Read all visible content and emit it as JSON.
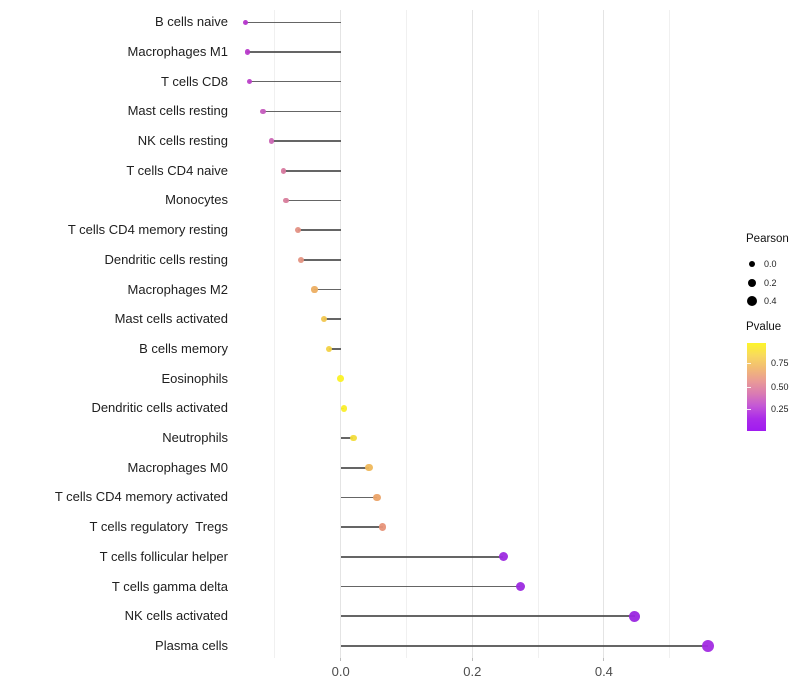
{
  "chart_data": {
    "type": "scatter",
    "style": "lollipop-horizontal",
    "title": "",
    "xlabel": "",
    "ylabel": "",
    "xlim": [
      -0.18,
      0.59
    ],
    "grid": "on",
    "x_ticks": [
      {
        "value": 0.0,
        "label": "0.0"
      },
      {
        "value": 0.2,
        "label": "0.2"
      },
      {
        "value": 0.4,
        "label": "0.4"
      }
    ],
    "gridlines": {
      "major": [
        0.0,
        0.2,
        0.4
      ],
      "minor": [
        -0.1,
        0.1,
        0.3,
        0.5
      ]
    },
    "categories": [
      "B cells naive",
      "Macrophages M1",
      "T cells CD8",
      "Mast cells resting",
      "NK cells resting",
      "T cells CD4 naive",
      "Monocytes",
      "T cells CD4 memory resting",
      "Dendritic cells resting",
      "Macrophages M2",
      "Mast cells activated",
      "B cells memory",
      "Eosinophils",
      "Dendritic cells activated",
      "Neutrophils",
      "Macrophages M0",
      "T cells CD4 memory activated",
      "T cells regulatory  Tregs",
      "T cells follicular helper",
      "T cells gamma delta",
      "NK cells activated",
      "Plasma cells"
    ],
    "points": [
      {
        "label": "B cells naive",
        "pearson": -0.145,
        "pvalue_est": 0.21,
        "color": "#b535cc"
      },
      {
        "label": "Macrophages M1",
        "pearson": -0.142,
        "pvalue_est": 0.22,
        "color": "#b83aca"
      },
      {
        "label": "T cells CD8",
        "pearson": -0.139,
        "pvalue_est": 0.23,
        "color": "#bb40c8"
      },
      {
        "label": "Mast cells resting",
        "pearson": -0.118,
        "pvalue_est": 0.3,
        "color": "#c55cbe"
      },
      {
        "label": "NK cells resting",
        "pearson": -0.105,
        "pvalue_est": 0.35,
        "color": "#cb67b5"
      },
      {
        "label": "T cells CD4 naive",
        "pearson": -0.087,
        "pvalue_est": 0.44,
        "color": "#d7799f"
      },
      {
        "label": "Monocytes",
        "pearson": -0.083,
        "pvalue_est": 0.45,
        "color": "#d87d9c"
      },
      {
        "label": "T cells CD4 memory resting",
        "pearson": -0.065,
        "pvalue_est": 0.55,
        "color": "#e39184"
      },
      {
        "label": "Dendritic cells resting",
        "pearson": -0.061,
        "pvalue_est": 0.56,
        "color": "#e49382"
      },
      {
        "label": "Macrophages M2",
        "pearson": -0.04,
        "pvalue_est": 0.66,
        "color": "#ecae62"
      },
      {
        "label": "Mast cells activated",
        "pearson": -0.025,
        "pvalue_est": 0.74,
        "color": "#f1c64f"
      },
      {
        "label": "B cells memory",
        "pearson": -0.018,
        "pvalue_est": 0.78,
        "color": "#f3d244"
      },
      {
        "label": "Eosinophils",
        "pearson": 0.0,
        "pvalue_est": 0.96,
        "color": "#fbf226"
      },
      {
        "label": "Dendritic cells activated",
        "pearson": 0.005,
        "pvalue_est": 0.94,
        "color": "#faee2a"
      },
      {
        "label": "Neutrophils",
        "pearson": 0.019,
        "pvalue_est": 0.8,
        "color": "#f2dc3b"
      },
      {
        "label": "Macrophages M0",
        "pearson": 0.043,
        "pvalue_est": 0.7,
        "color": "#efb85b"
      },
      {
        "label": "T cells CD4 memory activated",
        "pearson": 0.055,
        "pvalue_est": 0.64,
        "color": "#eba368"
      },
      {
        "label": "T cells regulatory  Tregs",
        "pearson": 0.064,
        "pvalue_est": 0.58,
        "color": "#e79379"
      },
      {
        "label": "T cells follicular helper",
        "pearson": 0.247,
        "pvalue_est": 0.04,
        "color": "#9d2be0"
      },
      {
        "label": "T cells gamma delta",
        "pearson": 0.273,
        "pvalue_est": 0.04,
        "color": "#9c2ae0"
      },
      {
        "label": "NK cells activated",
        "pearson": 0.447,
        "pvalue_est": 0.02,
        "color": "#9a26e0"
      },
      {
        "label": "Plasma cells",
        "pearson": 0.558,
        "pvalue_est": 0.05,
        "color": "#a22be2"
      }
    ],
    "legend_position": "right"
  },
  "legend": {
    "pearson": {
      "title": "Pearson",
      "items": [
        {
          "label": "0.0",
          "value": 0.0
        },
        {
          "label": "0.2",
          "value": 0.2
        },
        {
          "label": "0.4",
          "value": 0.4
        }
      ]
    },
    "pvalue": {
      "title": "Pvalue",
      "tick_labels": [
        "0.75",
        "0.50",
        "0.25"
      ],
      "gradient_top_to_bottom": [
        "#fdf52a",
        "#f8d95e",
        "#f2bb74",
        "#ea9c95",
        "#da7cb2",
        "#c458d6",
        "#ab2ce9",
        "#a01bf0"
      ]
    }
  }
}
